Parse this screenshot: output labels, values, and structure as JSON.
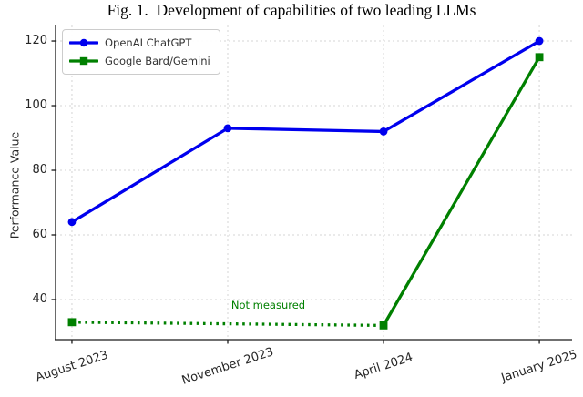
{
  "chart_data": {
    "type": "line",
    "title": "Fig. 1.  Development of capabilities of two leading LLMs",
    "ylabel": "Performance Value",
    "xlabel": "",
    "categories": [
      "August 2023",
      "November 2023",
      "April 2024",
      "January 2025"
    ],
    "yticks": [
      40,
      60,
      80,
      100,
      120
    ],
    "ylim": [
      27.6,
      124.8
    ],
    "xlim": [
      -0.105,
      3.21
    ],
    "grid": true,
    "grid_style": "dashed-light-gray",
    "legend_position": "upper-left",
    "series": [
      {
        "name": "OpenAI ChatGPT",
        "color": "#0000ee",
        "marker": "circle",
        "line_style": "solid",
        "points": [
          {
            "x": 0,
            "y": 64
          },
          {
            "x": 1,
            "y": 93
          },
          {
            "x": 2,
            "y": 92
          },
          {
            "x": 3,
            "y": 120
          }
        ],
        "segment_styles": [
          "solid",
          "solid",
          "solid"
        ]
      },
      {
        "name": "Google Bard/Gemini",
        "color": "#008000",
        "marker": "square",
        "line_style": "dotted-then-solid",
        "points": [
          {
            "x": 0,
            "y": 33
          },
          {
            "x": 2,
            "y": 32
          },
          {
            "x": 3,
            "y": 115
          }
        ],
        "segment_styles": [
          "dotted",
          "solid"
        ]
      }
    ],
    "annotations": [
      {
        "text": "Not measured",
        "x": 1.26,
        "y": 36.4,
        "color": "#008000"
      }
    ]
  }
}
